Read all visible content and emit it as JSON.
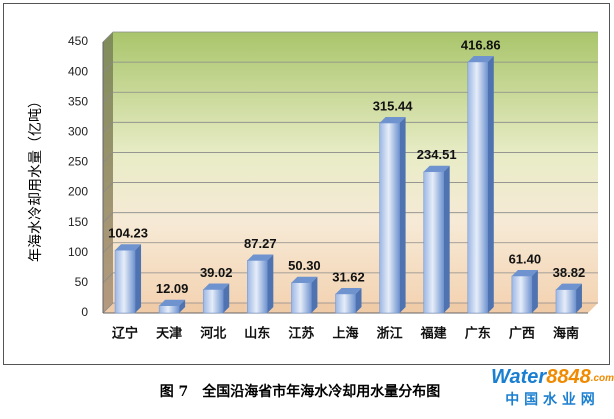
{
  "chart_data": {
    "type": "bar",
    "y_label": "年海水冷却用水量（亿吨）",
    "categories": [
      "辽宁",
      "天津",
      "河北",
      "山东",
      "江苏",
      "上海",
      "浙江",
      "福建",
      "广东",
      "广西",
      "海南"
    ],
    "values": [
      104.23,
      12.09,
      39.02,
      87.27,
      50.3,
      31.62,
      315.44,
      234.51,
      416.86,
      61.4,
      38.82
    ],
    "value_labels": [
      "104.23",
      "12.09",
      "39.02",
      "87.27",
      "50.30",
      "31.62",
      "315.44",
      "234.51",
      "416.86",
      "61.40",
      "38.82"
    ],
    "color": "#6f93cf",
    "ylim": [
      0,
      450
    ],
    "yticks": [
      0,
      50,
      100,
      150,
      200,
      250,
      300,
      350,
      400,
      450
    ],
    "grid": true
  },
  "caption": "图 7　全国沿海省市年海水冷却用水量分布图",
  "watermark": {
    "parts": [
      "Water",
      "8848",
      ".com"
    ],
    "subtitle": "中 国 水 业 网"
  }
}
